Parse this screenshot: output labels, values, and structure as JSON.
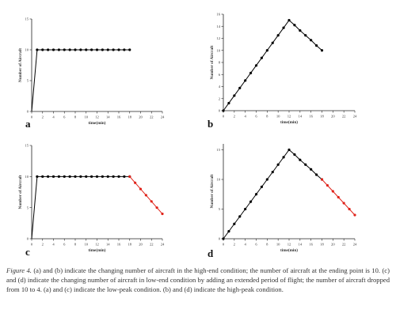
{
  "chart_data": [
    {
      "panel": "a",
      "type": "line",
      "xlabel": "time(min)",
      "ylabel": "Number of Aircraft",
      "xlim": [
        0,
        24
      ],
      "ylim": [
        0,
        15
      ],
      "xticks": [
        0,
        2,
        4,
        6,
        8,
        10,
        12,
        14,
        16,
        18,
        20,
        22,
        24
      ],
      "yticks": [
        0,
        5,
        10,
        15
      ],
      "series": [
        {
          "color": "#000000",
          "markers": false,
          "x": [
            0,
            1
          ],
          "y": [
            0,
            10
          ]
        },
        {
          "color": "#000000",
          "markers": true,
          "x": [
            1,
            2,
            3,
            4,
            5,
            6,
            7,
            8,
            9,
            10,
            11,
            12,
            13,
            14,
            15,
            16,
            17,
            18
          ],
          "y": [
            10,
            10,
            10,
            10,
            10,
            10,
            10,
            10,
            10,
            10,
            10,
            10,
            10,
            10,
            10,
            10,
            10,
            10
          ]
        }
      ]
    },
    {
      "panel": "b",
      "type": "line",
      "xlabel": "time(min)",
      "ylabel": "Number of Aircraft",
      "xlim": [
        0,
        24
      ],
      "ylim": [
        0,
        16
      ],
      "xticks": [
        0,
        2,
        4,
        6,
        8,
        10,
        12,
        14,
        16,
        18,
        20,
        22,
        24
      ],
      "yticks": [
        0,
        2,
        4,
        6,
        8,
        10,
        12,
        14,
        16
      ],
      "series": [
        {
          "color": "#000000",
          "markers": true,
          "x": [
            0,
            1,
            2,
            3,
            4,
            5,
            6,
            7,
            8,
            9,
            10,
            11,
            12,
            13,
            14,
            15,
            16,
            17,
            18
          ],
          "y": [
            0,
            1.25,
            2.5,
            3.75,
            5,
            6.25,
            7.5,
            8.75,
            10,
            11.25,
            12.5,
            13.75,
            15,
            14.2,
            13.3,
            12.5,
            11.7,
            10.8,
            10
          ]
        }
      ]
    },
    {
      "panel": "c",
      "type": "line",
      "xlabel": "time(min)",
      "ylabel": "Number of Aircraft",
      "xlim": [
        0,
        24
      ],
      "ylim": [
        0,
        15
      ],
      "xticks": [
        0,
        2,
        4,
        6,
        8,
        10,
        12,
        14,
        16,
        18,
        20,
        22,
        24
      ],
      "yticks": [
        0,
        5,
        10,
        15
      ],
      "series": [
        {
          "color": "#000000",
          "markers": false,
          "x": [
            0,
            1
          ],
          "y": [
            0,
            10
          ]
        },
        {
          "color": "#000000",
          "markers": true,
          "x": [
            1,
            2,
            3,
            4,
            5,
            6,
            7,
            8,
            9,
            10,
            11,
            12,
            13,
            14,
            15,
            16,
            17,
            18
          ],
          "y": [
            10,
            10,
            10,
            10,
            10,
            10,
            10,
            10,
            10,
            10,
            10,
            10,
            10,
            10,
            10,
            10,
            10,
            10
          ]
        },
        {
          "color": "#e0241b",
          "markers": true,
          "x": [
            18,
            19,
            20,
            21,
            22,
            23,
            24
          ],
          "y": [
            10,
            9,
            8,
            7,
            6,
            5,
            4
          ]
        }
      ]
    },
    {
      "panel": "d",
      "type": "line",
      "xlabel": "time(min)",
      "ylabel": "Number of Aircraft",
      "xlim": [
        0,
        24
      ],
      "ylim": [
        0,
        16
      ],
      "xticks": [
        0,
        2,
        4,
        6,
        8,
        10,
        12,
        14,
        16,
        18,
        20,
        22,
        24
      ],
      "yticks": [
        0,
        5,
        10,
        15
      ],
      "series": [
        {
          "color": "#000000",
          "markers": true,
          "x": [
            0,
            1,
            2,
            3,
            4,
            5,
            6,
            7,
            8,
            9,
            10,
            11,
            12,
            13,
            14,
            15,
            16,
            17,
            18
          ],
          "y": [
            0,
            1.25,
            2.5,
            3.75,
            5,
            6.25,
            7.5,
            8.75,
            10,
            11.25,
            12.5,
            13.75,
            15,
            14.2,
            13.3,
            12.5,
            11.7,
            10.8,
            10
          ]
        },
        {
          "color": "#e0241b",
          "markers": true,
          "x": [
            18,
            19,
            20,
            21,
            22,
            23,
            24
          ],
          "y": [
            10,
            9,
            8,
            7,
            6,
            5,
            4
          ]
        }
      ]
    }
  ],
  "caption": {
    "label": "Figure 4.",
    "text": " (a) and (b) indicate the changing number of aircraft in the high-end condition; the number of aircraft at the ending point is 10. (c) and (d) indicate the changing number of aircraft in low-end condition by adding an extended period of flight; the number of aircraft dropped from 10 to 4. (a) and (c) indicate the low-peak condition. (b) and (d) indicate the high-peak condition."
  }
}
